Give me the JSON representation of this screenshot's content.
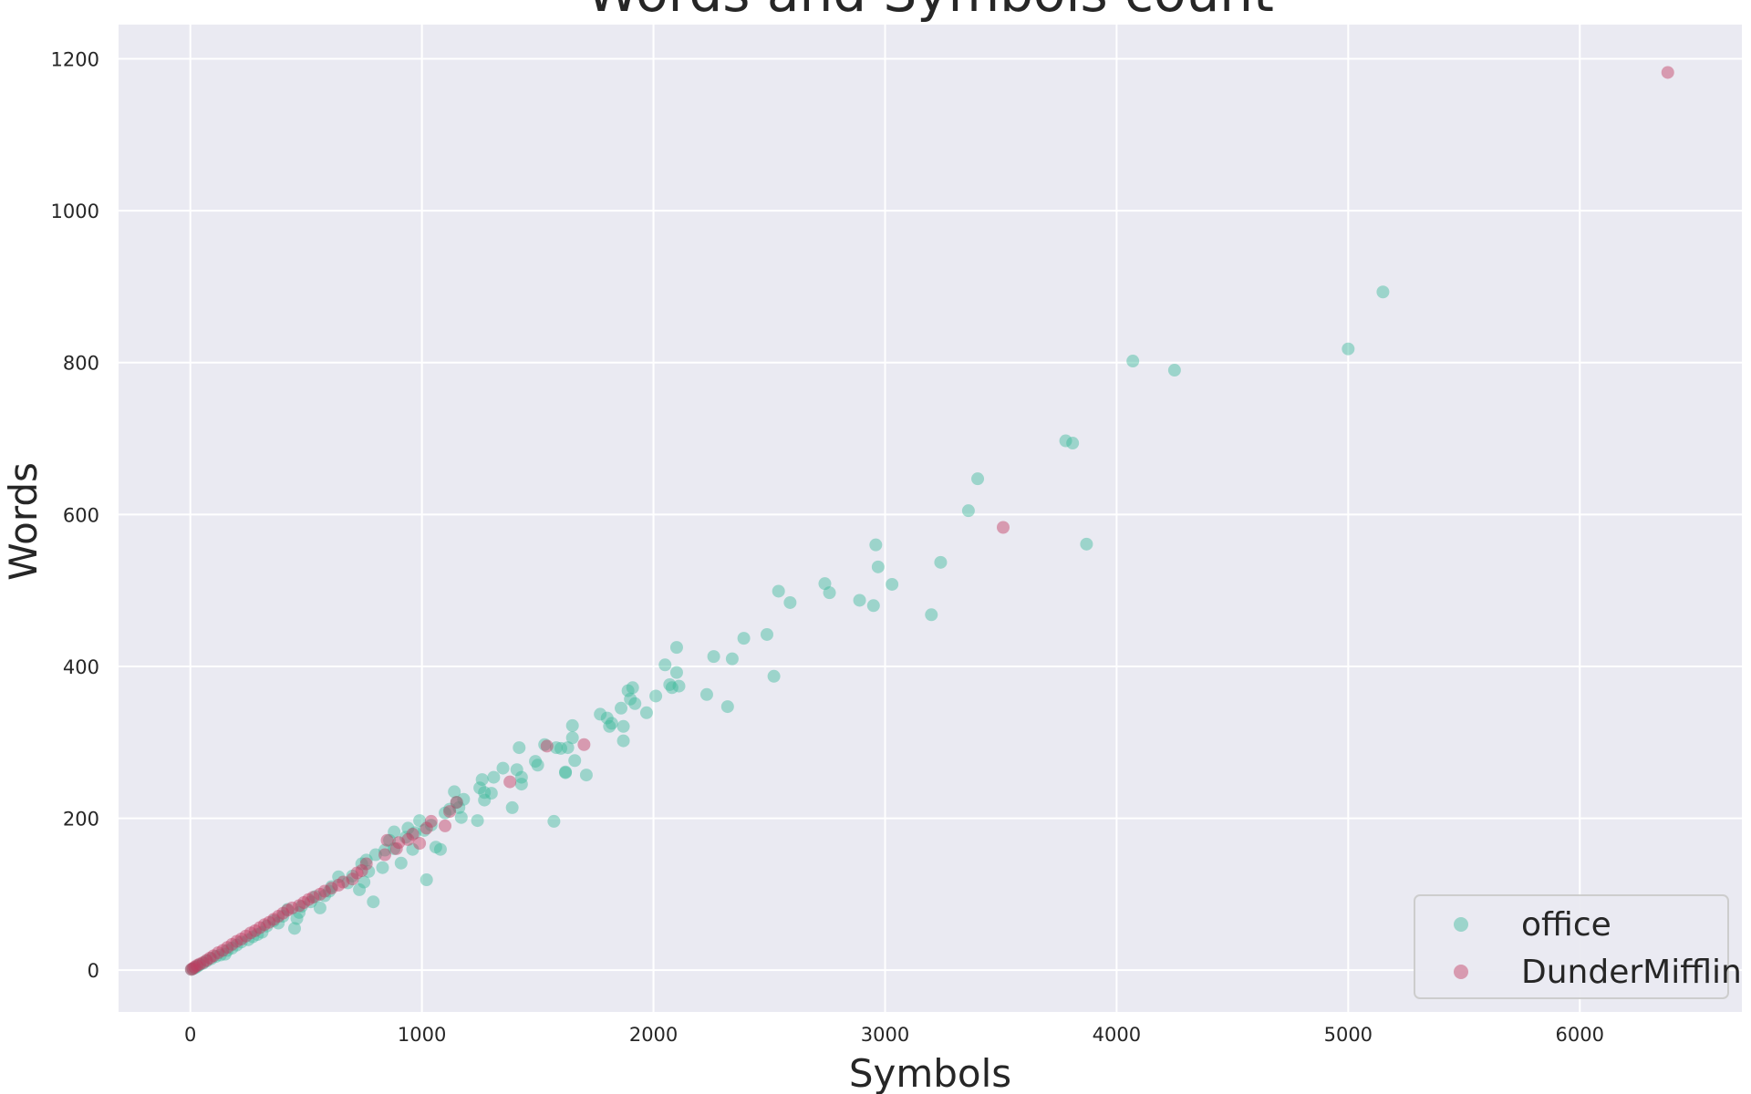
{
  "chart_data": {
    "type": "scatter",
    "title": "Words and Symbols count",
    "xlabel": "Symbols",
    "ylabel": "Words",
    "xlim": [
      -310,
      6700
    ],
    "ylim": [
      -55,
      1245
    ],
    "xticks": [
      0,
      1000,
      2000,
      3000,
      4000,
      5000,
      6000
    ],
    "yticks": [
      0,
      200,
      400,
      600,
      800,
      1000,
      1200
    ],
    "grid": true,
    "background": "#eaeaf2",
    "legend_position": "lower-right",
    "series": [
      {
        "name": "office",
        "color": "#3dbb9b",
        "opacity": 0.45,
        "points": [
          [
            4070,
            802
          ],
          [
            4250,
            790
          ],
          [
            5000,
            818
          ],
          [
            5150,
            893
          ],
          [
            3780,
            697
          ],
          [
            3810,
            694
          ],
          [
            3400,
            647
          ],
          [
            3360,
            605
          ],
          [
            3870,
            561
          ],
          [
            2960,
            560
          ],
          [
            2970,
            531
          ],
          [
            3030,
            508
          ],
          [
            3240,
            537
          ],
          [
            3200,
            468
          ],
          [
            2740,
            509
          ],
          [
            2760,
            497
          ],
          [
            2890,
            487
          ],
          [
            2950,
            480
          ],
          [
            2540,
            499
          ],
          [
            2590,
            484
          ],
          [
            2490,
            442
          ],
          [
            2390,
            437
          ],
          [
            2520,
            387
          ],
          [
            2100,
            425
          ],
          [
            2050,
            402
          ],
          [
            2100,
            392
          ],
          [
            2260,
            413
          ],
          [
            2340,
            410
          ],
          [
            2230,
            363
          ],
          [
            2320,
            347
          ],
          [
            2070,
            376
          ],
          [
            2080,
            372
          ],
          [
            2110,
            374
          ],
          [
            2010,
            361
          ],
          [
            1970,
            339
          ],
          [
            1890,
            368
          ],
          [
            1910,
            372
          ],
          [
            1900,
            357
          ],
          [
            1920,
            351
          ],
          [
            1860,
            345
          ],
          [
            1870,
            321
          ],
          [
            1870,
            302
          ],
          [
            1770,
            337
          ],
          [
            1800,
            332
          ],
          [
            1820,
            325
          ],
          [
            1810,
            321
          ],
          [
            1650,
            322
          ],
          [
            1650,
            306
          ],
          [
            1660,
            276
          ],
          [
            1630,
            293
          ],
          [
            1580,
            293
          ],
          [
            1600,
            292
          ],
          [
            1530,
            297
          ],
          [
            1620,
            261
          ],
          [
            1620,
            260
          ],
          [
            1710,
            257
          ],
          [
            1570,
            196
          ],
          [
            1420,
            293
          ],
          [
            1490,
            275
          ],
          [
            1500,
            270
          ],
          [
            1350,
            266
          ],
          [
            1410,
            264
          ],
          [
            1430,
            254
          ],
          [
            1430,
            245
          ],
          [
            1310,
            254
          ],
          [
            1300,
            233
          ],
          [
            1260,
            251
          ],
          [
            1250,
            240
          ],
          [
            1270,
            234
          ],
          [
            1270,
            224
          ],
          [
            1240,
            197
          ],
          [
            1390,
            214
          ],
          [
            1140,
            235
          ],
          [
            1150,
            221
          ],
          [
            1180,
            225
          ],
          [
            1160,
            214
          ],
          [
            1120,
            212
          ],
          [
            1170,
            201
          ],
          [
            1100,
            207
          ],
          [
            990,
            197
          ],
          [
            1010,
            184
          ],
          [
            1040,
            191
          ],
          [
            970,
            181
          ],
          [
            940,
            187
          ],
          [
            930,
            175
          ],
          [
            960,
            159
          ],
          [
            1060,
            162
          ],
          [
            1080,
            159
          ],
          [
            1020,
            119
          ],
          [
            910,
            141
          ],
          [
            880,
            182
          ],
          [
            860,
            171
          ],
          [
            880,
            160
          ],
          [
            840,
            158
          ],
          [
            800,
            152
          ],
          [
            830,
            135
          ],
          [
            790,
            90
          ],
          [
            760,
            145
          ],
          [
            740,
            140
          ],
          [
            770,
            130
          ],
          [
            750,
            116
          ],
          [
            730,
            106
          ],
          [
            700,
            124
          ],
          [
            680,
            115
          ],
          [
            640,
            123
          ],
          [
            610,
            110
          ],
          [
            600,
            104
          ],
          [
            580,
            98
          ],
          [
            560,
            82
          ],
          [
            540,
            97
          ],
          [
            520,
            90
          ],
          [
            480,
            84
          ],
          [
            470,
            76
          ],
          [
            450,
            55
          ],
          [
            460,
            68
          ],
          [
            420,
            80
          ],
          [
            400,
            71
          ],
          [
            380,
            62
          ],
          [
            360,
            65
          ],
          [
            330,
            58
          ],
          [
            310,
            50
          ],
          [
            290,
            47
          ],
          [
            270,
            44
          ],
          [
            250,
            40
          ],
          [
            220,
            37
          ],
          [
            200,
            33
          ],
          [
            180,
            29
          ],
          [
            160,
            26
          ],
          [
            150,
            21
          ],
          [
            130,
            20
          ],
          [
            110,
            18
          ],
          [
            90,
            15
          ],
          [
            70,
            12
          ],
          [
            55,
            9
          ],
          [
            40,
            7
          ],
          [
            30,
            5
          ],
          [
            20,
            3
          ],
          [
            12,
            2
          ],
          [
            5,
            1
          ]
        ]
      },
      {
        "name": "DunderMifflin",
        "color": "#c0395f",
        "opacity": 0.45,
        "points": [
          [
            6380,
            1182
          ],
          [
            3510,
            583
          ],
          [
            1700,
            297
          ],
          [
            1540,
            295
          ],
          [
            1380,
            248
          ],
          [
            1150,
            221
          ],
          [
            1120,
            209
          ],
          [
            1100,
            190
          ],
          [
            1040,
            196
          ],
          [
            1020,
            187
          ],
          [
            990,
            167
          ],
          [
            960,
            179
          ],
          [
            940,
            172
          ],
          [
            900,
            168
          ],
          [
            890,
            160
          ],
          [
            850,
            171
          ],
          [
            840,
            152
          ],
          [
            760,
            140
          ],
          [
            740,
            131
          ],
          [
            720,
            128
          ],
          [
            700,
            120
          ],
          [
            660,
            116
          ],
          [
            640,
            112
          ],
          [
            610,
            108
          ],
          [
            580,
            104
          ],
          [
            560,
            100
          ],
          [
            530,
            96
          ],
          [
            510,
            93
          ],
          [
            490,
            89
          ],
          [
            470,
            85
          ],
          [
            440,
            82
          ],
          [
            420,
            79
          ],
          [
            400,
            75
          ],
          [
            380,
            71
          ],
          [
            360,
            67
          ],
          [
            340,
            63
          ],
          [
            320,
            60
          ],
          [
            300,
            56
          ],
          [
            280,
            52
          ],
          [
            260,
            49
          ],
          [
            240,
            45
          ],
          [
            220,
            41
          ],
          [
            200,
            38
          ],
          [
            180,
            34
          ],
          [
            160,
            30
          ],
          [
            140,
            26
          ],
          [
            120,
            23
          ],
          [
            100,
            19
          ],
          [
            85,
            16
          ],
          [
            70,
            13
          ],
          [
            55,
            10
          ],
          [
            40,
            8
          ],
          [
            28,
            6
          ],
          [
            18,
            4
          ],
          [
            10,
            2
          ],
          [
            4,
            1
          ]
        ]
      }
    ]
  }
}
